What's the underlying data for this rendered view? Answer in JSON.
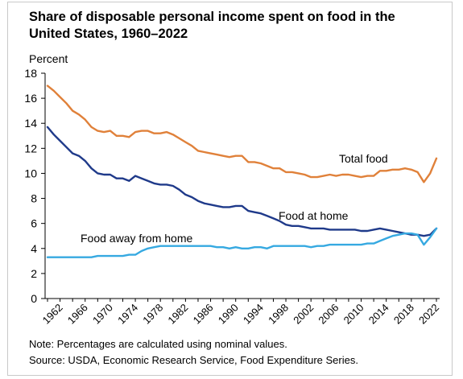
{
  "title": "Share of disposable personal income spent on food in the United States, 1960–2022",
  "unit_label": "Percent",
  "note": "Note: Percentages are calculated using nominal values.",
  "source": "Source: USDA, Economic Research Service, Food Expenditure Series.",
  "colors": {
    "total_food": "#e0813a",
    "food_at_home": "#1f3a8a",
    "food_away": "#36a9e1",
    "axis": "#000000"
  },
  "chart_data": {
    "type": "line",
    "title": "Share of disposable personal income spent on food in the United States, 1960–2022",
    "ylabel": "Percent",
    "xlabel": "",
    "ylim": [
      0,
      18
    ],
    "xlim": [
      1960,
      2022
    ],
    "y_ticks": [
      "0",
      "2",
      "4",
      "6",
      "8",
      "10",
      "12",
      "14",
      "16",
      "18"
    ],
    "x_ticks": [
      "1962",
      "1966",
      "1970",
      "1974",
      "1978",
      "1982",
      "1986",
      "1990",
      "1994",
      "1998",
      "2002",
      "2006",
      "2010",
      "2014",
      "2018",
      "2022"
    ],
    "grid": false,
    "legend": "inline labels",
    "x": [
      1960,
      1961,
      1962,
      1963,
      1964,
      1965,
      1966,
      1967,
      1968,
      1969,
      1970,
      1971,
      1972,
      1973,
      1974,
      1975,
      1976,
      1977,
      1978,
      1979,
      1980,
      1981,
      1982,
      1983,
      1984,
      1985,
      1986,
      1987,
      1988,
      1989,
      1990,
      1991,
      1992,
      1993,
      1994,
      1995,
      1996,
      1997,
      1998,
      1999,
      2000,
      2001,
      2002,
      2003,
      2004,
      2005,
      2006,
      2007,
      2008,
      2009,
      2010,
      2011,
      2012,
      2013,
      2014,
      2015,
      2016,
      2017,
      2018,
      2019,
      2020,
      2021,
      2022
    ],
    "series": [
      {
        "name": "Total food",
        "color": "#e0813a",
        "values": [
          17.0,
          16.6,
          16.1,
          15.6,
          15.0,
          14.7,
          14.3,
          13.7,
          13.4,
          13.3,
          13.4,
          13.0,
          13.0,
          12.9,
          13.3,
          13.4,
          13.4,
          13.2,
          13.2,
          13.3,
          13.1,
          12.8,
          12.5,
          12.2,
          11.8,
          11.7,
          11.6,
          11.5,
          11.4,
          11.3,
          11.4,
          11.4,
          10.9,
          10.9,
          10.8,
          10.6,
          10.4,
          10.4,
          10.1,
          10.1,
          10.0,
          9.9,
          9.7,
          9.7,
          9.8,
          9.9,
          9.8,
          9.9,
          9.9,
          9.8,
          9.7,
          9.8,
          9.8,
          10.2,
          10.2,
          10.3,
          10.3,
          10.4,
          10.3,
          10.1,
          9.3,
          10.0,
          11.2
        ]
      },
      {
        "name": "Food at home",
        "color": "#1f3a8a",
        "values": [
          13.7,
          13.1,
          12.6,
          12.1,
          11.6,
          11.4,
          11.0,
          10.4,
          10.0,
          9.9,
          9.9,
          9.6,
          9.6,
          9.4,
          9.8,
          9.6,
          9.4,
          9.2,
          9.1,
          9.1,
          9.0,
          8.7,
          8.3,
          8.1,
          7.8,
          7.6,
          7.5,
          7.4,
          7.3,
          7.3,
          7.4,
          7.4,
          7.0,
          6.9,
          6.8,
          6.6,
          6.4,
          6.2,
          5.9,
          5.8,
          5.8,
          5.7,
          5.6,
          5.6,
          5.6,
          5.5,
          5.5,
          5.5,
          5.5,
          5.5,
          5.4,
          5.4,
          5.5,
          5.6,
          5.5,
          5.4,
          5.3,
          5.2,
          5.1,
          5.1,
          5.0,
          5.1,
          5.6
        ]
      },
      {
        "name": "Food away from home",
        "color": "#36a9e1",
        "values": [
          3.3,
          3.3,
          3.3,
          3.3,
          3.3,
          3.3,
          3.3,
          3.3,
          3.4,
          3.4,
          3.4,
          3.4,
          3.4,
          3.5,
          3.5,
          3.8,
          4.0,
          4.1,
          4.2,
          4.2,
          4.2,
          4.2,
          4.2,
          4.2,
          4.2,
          4.2,
          4.2,
          4.1,
          4.1,
          4.0,
          4.1,
          4.0,
          4.0,
          4.1,
          4.1,
          4.0,
          4.2,
          4.2,
          4.2,
          4.2,
          4.2,
          4.2,
          4.1,
          4.2,
          4.2,
          4.3,
          4.3,
          4.3,
          4.3,
          4.3,
          4.3,
          4.4,
          4.4,
          4.6,
          4.8,
          5.0,
          5.1,
          5.2,
          5.2,
          5.1,
          4.3,
          4.9,
          5.6
        ]
      }
    ],
    "annotations": [
      "Total food",
      "Food at home",
      "Food away from home"
    ]
  }
}
